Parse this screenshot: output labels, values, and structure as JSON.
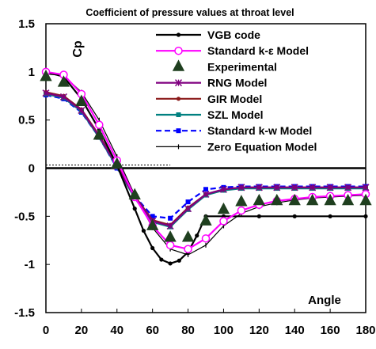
{
  "chart_data": {
    "type": "line",
    "title": "Coefficient of pressure values at throat level",
    "xlabel": "Angle",
    "ylabel": "Cp",
    "xlim": [
      0,
      180
    ],
    "ylim": [
      -1.5,
      1.5
    ],
    "x_ticks": [
      0,
      20,
      40,
      60,
      80,
      100,
      120,
      140,
      160,
      180
    ],
    "y_ticks": [
      1.5,
      1,
      0.5,
      0,
      -0.5,
      -1,
      -1.5
    ],
    "x_tick_labels": [
      "0",
      "20",
      "40",
      "60",
      "80",
      "100",
      "120",
      "140",
      "160",
      "180"
    ],
    "y_tick_labels": [
      "1.5",
      "1",
      "0.5",
      "0",
      "-0.5",
      "-1",
      "-1.5"
    ],
    "grid": false,
    "legend_position": "top-right",
    "series": [
      {
        "name": "VGB code",
        "color": "#000000",
        "marker": "dot",
        "x": [
          0,
          10,
          20,
          30,
          40,
          50,
          55,
          60,
          65,
          70,
          75,
          80,
          85,
          90,
          100,
          120,
          140,
          160,
          180
        ],
        "y": [
          1.0,
          0.95,
          0.72,
          0.4,
          0.03,
          -0.42,
          -0.65,
          -0.83,
          -0.95,
          -0.99,
          -0.96,
          -0.87,
          -0.7,
          -0.5,
          -0.5,
          -0.5,
          -0.5,
          -0.5,
          -0.5
        ]
      },
      {
        "name": "Standard k-ε Model",
        "color": "#ff00ff",
        "marker": "circle",
        "x": [
          0,
          10,
          20,
          30,
          40,
          50,
          60,
          70,
          80,
          90,
          100,
          110,
          120,
          130,
          140,
          150,
          160,
          170,
          180
        ],
        "y": [
          1.0,
          0.97,
          0.77,
          0.45,
          0.08,
          -0.3,
          -0.6,
          -0.8,
          -0.84,
          -0.73,
          -0.55,
          -0.44,
          -0.38,
          -0.34,
          -0.32,
          -0.3,
          -0.29,
          -0.28,
          -0.27
        ]
      },
      {
        "name": "Experimental",
        "color": "#1f3f1f",
        "marker": "triangle",
        "x": [
          0,
          10,
          20,
          30,
          40,
          50,
          60,
          70,
          80,
          90,
          100,
          110,
          120,
          130,
          140,
          150,
          160,
          170,
          180
        ],
        "y": [
          0.95,
          0.89,
          0.69,
          0.34,
          0.04,
          -0.28,
          -0.6,
          -0.72,
          -0.72,
          -0.55,
          -0.43,
          -0.35,
          -0.34,
          -0.34,
          -0.34,
          -0.34,
          -0.34,
          -0.34,
          -0.34
        ]
      },
      {
        "name": "RNG Model",
        "color": "#800080",
        "marker": "x",
        "x": [
          0,
          10,
          20,
          30,
          40,
          50,
          60,
          70,
          80,
          90,
          100,
          110,
          120,
          130,
          140,
          150,
          160,
          170,
          180
        ],
        "y": [
          0.78,
          0.74,
          0.6,
          0.33,
          0.02,
          -0.3,
          -0.55,
          -0.6,
          -0.42,
          -0.27,
          -0.22,
          -0.2,
          -0.2,
          -0.2,
          -0.2,
          -0.2,
          -0.2,
          -0.2,
          -0.2
        ]
      },
      {
        "name": "GIR Model",
        "color": "#8b1a1a",
        "marker": "dot",
        "x": [
          0,
          10,
          20,
          30,
          40,
          50,
          60,
          70,
          80,
          90,
          100,
          110,
          120,
          130,
          140,
          150,
          160,
          170,
          180
        ],
        "y": [
          0.79,
          0.75,
          0.61,
          0.34,
          0.03,
          -0.29,
          -0.54,
          -0.59,
          -0.41,
          -0.27,
          -0.22,
          -0.2,
          -0.2,
          -0.2,
          -0.2,
          -0.2,
          -0.2,
          -0.2,
          -0.2
        ]
      },
      {
        "name": "SZL Model",
        "color": "#008080",
        "marker": "square",
        "x": [
          0,
          10,
          20,
          30,
          40,
          50,
          60,
          70,
          80,
          90,
          100,
          110,
          120,
          130,
          140,
          150,
          160,
          170,
          180
        ],
        "y": [
          0.77,
          0.73,
          0.59,
          0.32,
          0.01,
          -0.31,
          -0.56,
          -0.61,
          -0.43,
          -0.28,
          -0.23,
          -0.21,
          -0.21,
          -0.21,
          -0.21,
          -0.21,
          -0.21,
          -0.21,
          -0.21
        ]
      },
      {
        "name": "Standard k-w Model",
        "color": "#0000ff",
        "marker": "square",
        "dash": true,
        "x": [
          0,
          10,
          20,
          30,
          40,
          50,
          60,
          70,
          80,
          90,
          100,
          110,
          120,
          130,
          140,
          150,
          160,
          170,
          180
        ],
        "y": [
          0.76,
          0.72,
          0.58,
          0.32,
          0.0,
          -0.29,
          -0.5,
          -0.52,
          -0.35,
          -0.22,
          -0.2,
          -0.19,
          -0.19,
          -0.19,
          -0.19,
          -0.19,
          -0.19,
          -0.19,
          -0.19
        ]
      },
      {
        "name": "Zero Equation Model",
        "color": "#000000",
        "marker": "tick",
        "thin": true,
        "x": [
          0,
          10,
          20,
          30,
          40,
          50,
          60,
          70,
          80,
          90,
          100,
          110,
          120,
          130,
          140,
          150,
          160,
          170,
          180
        ],
        "y": [
          0.98,
          0.96,
          0.79,
          0.5,
          0.12,
          -0.28,
          -0.62,
          -0.84,
          -0.9,
          -0.8,
          -0.6,
          -0.47,
          -0.4,
          -0.36,
          -0.33,
          -0.31,
          -0.3,
          -0.29,
          -0.28
        ]
      }
    ]
  }
}
